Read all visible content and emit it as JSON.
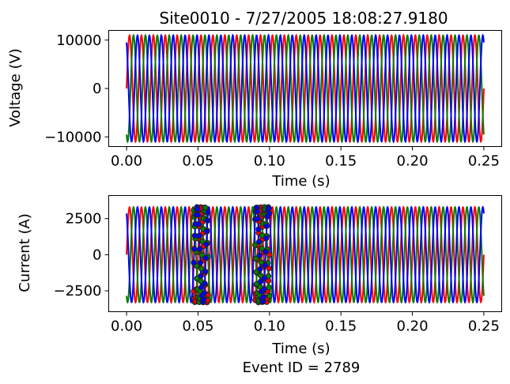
{
  "chart_data": [
    {
      "type": "line",
      "title": "Site0010 - 7/27/2005 18:08:27.9180",
      "xlabel": "Time (s)",
      "ylabel": "Voltage (V)",
      "xlim": [
        -0.0125,
        0.2625
      ],
      "ylim": [
        -12000,
        12000
      ],
      "xticks": [
        0.0,
        0.05,
        0.1,
        0.15,
        0.2,
        0.25
      ],
      "xtick_labels": [
        "0.00",
        "0.05",
        "0.10",
        "0.15",
        "0.20",
        "0.25"
      ],
      "yticks": [
        10000,
        0,
        -10000
      ],
      "ytick_labels": [
        "10000",
        "0",
        "−10000"
      ],
      "grid": false,
      "sample_range": [
        0.0,
        0.25
      ],
      "frequency_hz": 120,
      "series": [
        {
          "color": "#ff0000",
          "amplitude": 11000,
          "phase_deg": 0
        },
        {
          "color": "#008000",
          "amplitude": 11000,
          "phase_deg": -120
        },
        {
          "color": "#0000ff",
          "amplitude": 11000,
          "phase_deg": 120
        }
      ]
    },
    {
      "type": "line",
      "title": "",
      "xlabel": "Time (s)",
      "ylabel": "Current (A)",
      "xlim": [
        -0.0125,
        0.2625
      ],
      "ylim": [
        -3950,
        4100
      ],
      "xticks": [
        0.0,
        0.05,
        0.1,
        0.15,
        0.2,
        0.25
      ],
      "xtick_labels": [
        "0.00",
        "0.05",
        "0.10",
        "0.15",
        "0.20",
        "0.25"
      ],
      "yticks": [
        2500,
        0,
        -2500
      ],
      "ytick_labels": [
        "2500",
        "0",
        "−2500"
      ],
      "grid": false,
      "sample_range": [
        0.0,
        0.25
      ],
      "frequency_hz": 120,
      "series": [
        {
          "color": "#ff0000",
          "amplitude": 3300,
          "phase_deg": 0
        },
        {
          "color": "#008000",
          "amplitude": 3300,
          "phase_deg": -120
        },
        {
          "color": "#0000ff",
          "amplitude": 3300,
          "phase_deg": 120
        }
      ],
      "event_marker_windows": [
        [
          0.047,
          0.057
        ],
        [
          0.09,
          0.1
        ]
      ],
      "event_marker_style": "circle markers, dark edge"
    }
  ],
  "footer": {
    "event_label": "Event ID = 2789"
  }
}
